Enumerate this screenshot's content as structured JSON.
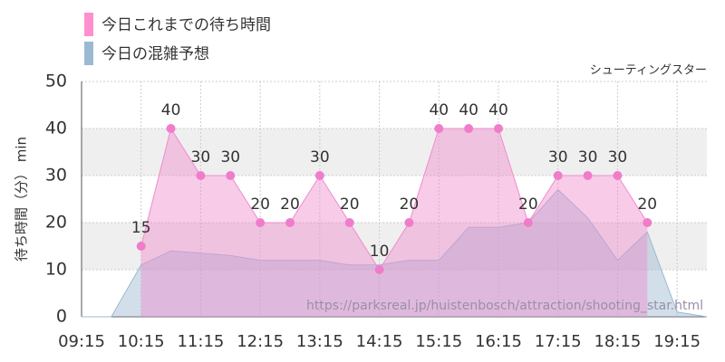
{
  "chart_data": {
    "type": "line",
    "legend": [
      "今日これまでの待ち時間",
      "今日の混雑予想"
    ],
    "subtitle": "シューティングスター",
    "ylabel": "待ち時間（分） min",
    "watermark": "https://parksreal.jp/huistenbosch/attraction/shooting_star.html",
    "xlim": [
      "09:15",
      "19:45"
    ],
    "xticks": [
      "09:15",
      "10:15",
      "11:15",
      "12:15",
      "13:15",
      "14:15",
      "15:15",
      "16:15",
      "17:15",
      "18:15",
      "19:15"
    ],
    "ylim": [
      0,
      50
    ],
    "yticks": [
      0,
      10,
      20,
      30,
      40,
      50
    ],
    "bands": [
      [
        10,
        20
      ],
      [
        30,
        40
      ]
    ],
    "series": [
      {
        "name": "今日の混雑予想",
        "color": "#9bb9d3",
        "x": [
          "09:15",
          "09:45",
          "10:15",
          "10:45",
          "11:15",
          "11:45",
          "12:15",
          "12:45",
          "13:15",
          "13:45",
          "14:15",
          "14:45",
          "15:15",
          "15:45",
          "16:15",
          "16:45",
          "17:15",
          "17:45",
          "18:15",
          "18:45",
          "19:15",
          "19:45"
        ],
        "values": [
          0,
          0,
          11,
          14,
          13.5,
          13,
          12,
          12,
          12,
          11,
          11,
          12,
          12,
          19,
          19,
          20,
          27,
          21,
          12,
          18,
          1,
          0
        ]
      },
      {
        "name": "今日これまでの待ち時間",
        "color": "#f08ccc",
        "x": [
          "10:15",
          "10:45",
          "11:15",
          "11:45",
          "12:15",
          "12:45",
          "13:15",
          "13:45",
          "14:15",
          "14:45",
          "15:15",
          "15:45",
          "16:15",
          "16:45",
          "17:15",
          "17:45",
          "18:15",
          "18:45"
        ],
        "values": [
          15,
          40,
          30,
          30,
          20,
          20,
          30,
          20,
          10,
          20,
          40,
          40,
          40,
          20,
          30,
          30,
          30,
          20
        ]
      }
    ]
  }
}
